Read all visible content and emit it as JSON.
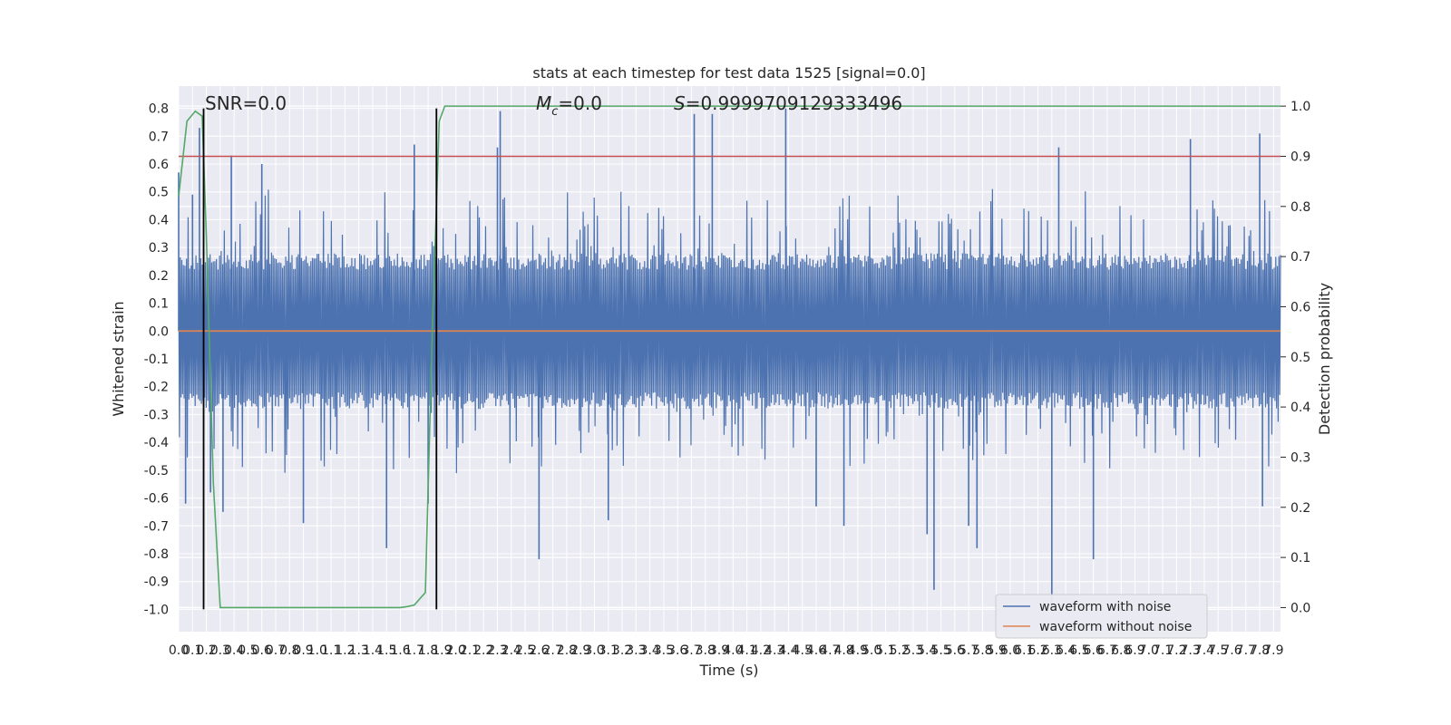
{
  "chart_data": {
    "type": "line",
    "title": "stats at each timestep for test data 1525 [signal=0.0]",
    "xlabel": "Time (s)",
    "ylabel": "Whitened strain",
    "y2label": "Detection probability",
    "xlim": [
      0.0,
      7.95
    ],
    "ylim": [
      -1.08,
      0.88
    ],
    "y2lim": [
      -0.048,
      1.04
    ],
    "grid": true,
    "legend_position": "lower-right",
    "x_ticks": [
      "0.0",
      "0.1",
      "0.2",
      "0.3",
      "0.4",
      "0.5",
      "0.6",
      "0.7",
      "0.8",
      "0.9",
      "1.0",
      "1.1",
      "1.2",
      "1.3",
      "1.4",
      "1.5",
      "1.6",
      "1.7",
      "1.8",
      "1.9",
      "2.0",
      "2.1",
      "2.2",
      "2.3",
      "2.4",
      "2.5",
      "2.6",
      "2.7",
      "2.8",
      "2.9",
      "3.0",
      "3.1",
      "3.2",
      "3.3",
      "3.4",
      "3.5",
      "3.6",
      "3.7",
      "3.8",
      "3.9",
      "4.0",
      "4.1",
      "4.2",
      "4.3",
      "4.4",
      "4.5",
      "4.6",
      "4.7",
      "4.8",
      "4.9",
      "5.0",
      "5.1",
      "5.2",
      "5.3",
      "5.4",
      "5.5",
      "5.6",
      "5.7",
      "5.8",
      "5.9",
      "6.0",
      "6.1",
      "6.2",
      "6.3",
      "6.4",
      "6.5",
      "6.6",
      "6.7",
      "6.8",
      "6.9",
      "7.0",
      "7.1",
      "7.2",
      "7.3",
      "7.4",
      "7.5",
      "7.6",
      "7.7",
      "7.8",
      "7.9"
    ],
    "y_ticks": [
      "0.8",
      "0.7",
      "0.6",
      "0.5",
      "0.4",
      "0.3",
      "0.2",
      "0.1",
      "0.0",
      "-0.1",
      "-0.2",
      "-0.3",
      "-0.4",
      "-0.5",
      "-0.6",
      "-0.7",
      "-0.8",
      "-0.9",
      "-1.0"
    ],
    "y2_ticks": [
      "1.0",
      "0.9",
      "0.8",
      "0.7",
      "0.6",
      "0.5",
      "0.4",
      "0.3",
      "0.2",
      "0.1",
      "0.0"
    ],
    "annotations": {
      "snr": "SNR=0.0",
      "mc_symbol": "M",
      "mc_sub": "c",
      "mc_value": "=0.0",
      "s_symbol": "S",
      "s_value": "=0.9999709129333496"
    },
    "series": [
      {
        "name": "waveform with noise",
        "color": "#4c72b0",
        "axis": "left",
        "style": "dense noise, mostly within ±0.25 with spikes",
        "spikes": [
          {
            "x": 0.0,
            "y": 0.57
          },
          {
            "x": 0.05,
            "y": -0.62
          },
          {
            "x": 0.1,
            "y": 0.49
          },
          {
            "x": 0.15,
            "y": 0.73
          },
          {
            "x": 0.23,
            "y": -0.58
          },
          {
            "x": 0.32,
            "y": -0.65
          },
          {
            "x": 0.38,
            "y": 0.63
          },
          {
            "x": 0.6,
            "y": 0.6
          },
          {
            "x": 0.9,
            "y": -0.69
          },
          {
            "x": 1.5,
            "y": -0.78
          },
          {
            "x": 1.7,
            "y": 0.67
          },
          {
            "x": 1.8,
            "y": -0.62
          },
          {
            "x": 2.3,
            "y": 0.66
          },
          {
            "x": 2.6,
            "y": -0.82
          },
          {
            "x": 2.32,
            "y": 0.79
          },
          {
            "x": 3.1,
            "y": -0.68
          },
          {
            "x": 3.72,
            "y": 0.78
          },
          {
            "x": 3.85,
            "y": 0.78
          },
          {
            "x": 4.38,
            "y": 0.8
          },
          {
            "x": 4.6,
            "y": -0.63
          },
          {
            "x": 4.8,
            "y": -0.7
          },
          {
            "x": 5.4,
            "y": -0.73
          },
          {
            "x": 5.45,
            "y": -0.93
          },
          {
            "x": 5.7,
            "y": -0.7
          },
          {
            "x": 5.76,
            "y": -0.78
          },
          {
            "x": 6.3,
            "y": -0.98
          },
          {
            "x": 6.35,
            "y": 0.66
          },
          {
            "x": 6.6,
            "y": -0.82
          },
          {
            "x": 7.3,
            "y": 0.69
          },
          {
            "x": 7.8,
            "y": 0.71
          },
          {
            "x": 7.82,
            "y": -0.63
          }
        ]
      },
      {
        "name": "waveform without noise",
        "color": "#dd8452",
        "axis": "left",
        "x": [
          0.0,
          7.95
        ],
        "y": [
          0.0,
          0.0
        ]
      },
      {
        "name": "",
        "color": "#55a868",
        "axis": "right",
        "x": [
          0.0,
          0.06,
          0.12,
          0.17,
          0.2,
          0.25,
          0.3,
          0.31,
          0.35,
          0.5,
          1.0,
          1.5,
          1.6,
          1.65,
          1.7,
          1.78,
          1.83,
          1.88,
          1.92,
          1.95,
          2.5,
          3.5,
          4.5,
          5.5,
          6.5,
          7.5,
          7.95
        ],
        "y": [
          0.82,
          0.97,
          0.99,
          0.98,
          0.74,
          0.25,
          0.0,
          0.0,
          0.0,
          0.0,
          0.0,
          0.0,
          0.0,
          0.002,
          0.005,
          0.03,
          0.55,
          0.97,
          1.0,
          1.0,
          1.0,
          1.0,
          1.0,
          1.0,
          1.0,
          1.0,
          1.0
        ]
      }
    ],
    "threshold": {
      "axis": "right",
      "y": 0.9,
      "color": "#c44e52"
    },
    "vlines": [
      {
        "x": 0.18,
        "y_from": -1.0,
        "y_to": 0.8,
        "color": "#000000"
      },
      {
        "x": 1.86,
        "y_from": -1.0,
        "y_to": 0.8,
        "color": "#000000"
      }
    ],
    "legend": [
      {
        "label": "waveform with noise",
        "color": "#4c72b0"
      },
      {
        "label": "waveform without noise",
        "color": "#dd8452"
      }
    ]
  }
}
